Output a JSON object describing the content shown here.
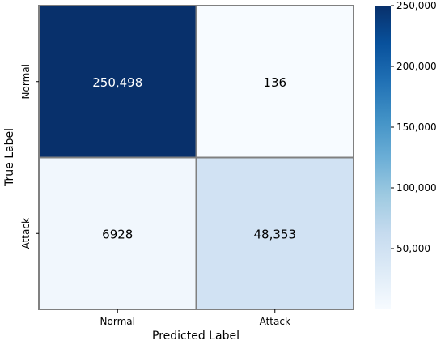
{
  "chart_data": {
    "type": "heatmap",
    "title": "",
    "xlabel": "Predicted Label",
    "ylabel": "True Label",
    "x_categories": [
      "Normal",
      "Attack"
    ],
    "y_categories": [
      "Normal",
      "Attack"
    ],
    "values": [
      [
        250498,
        136
      ],
      [
        6928,
        48353
      ]
    ],
    "cell_labels": [
      [
        "250,498",
        "136"
      ],
      [
        "6928",
        "48,353"
      ]
    ],
    "colorscale": "Blues",
    "colorbar": {
      "range": [
        0,
        250000
      ],
      "ticks": [
        50000,
        100000,
        150000,
        200000,
        250000
      ],
      "tick_labels": [
        "50,000",
        "100,000",
        "150,000",
        "200,000",
        "250,000"
      ]
    }
  }
}
